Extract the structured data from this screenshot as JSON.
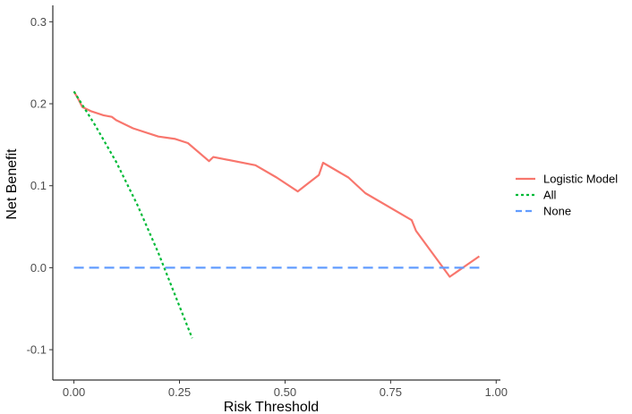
{
  "chart_data": {
    "type": "line",
    "xlabel": "Risk Threshold",
    "ylabel": "Net Benefit",
    "xlim": [
      -0.05,
      1.01
    ],
    "ylim": [
      -0.137,
      0.32
    ],
    "x_ticks": [
      0.0,
      0.25,
      0.5,
      0.75,
      1.0
    ],
    "x_tick_labels": [
      "0.00",
      "0.25",
      "0.50",
      "0.75",
      "1.00"
    ],
    "y_ticks": [
      -0.1,
      0.0,
      0.1,
      0.2,
      0.3
    ],
    "y_tick_labels": [
      "-0.1",
      "0.0",
      "0.1",
      "0.2",
      "0.3"
    ],
    "grid": false,
    "legend_position": "right",
    "series": [
      {
        "name": "Logistic Model",
        "color": "#F8766D",
        "dash": "solid",
        "points": [
          [
            0.0,
            0.215
          ],
          [
            0.01,
            0.206
          ],
          [
            0.02,
            0.196
          ],
          [
            0.04,
            0.191
          ],
          [
            0.07,
            0.186
          ],
          [
            0.09,
            0.184
          ],
          [
            0.1,
            0.18
          ],
          [
            0.14,
            0.17
          ],
          [
            0.2,
            0.16
          ],
          [
            0.24,
            0.157
          ],
          [
            0.27,
            0.152
          ],
          [
            0.32,
            0.13
          ],
          [
            0.33,
            0.135
          ],
          [
            0.43,
            0.125
          ],
          [
            0.48,
            0.11
          ],
          [
            0.53,
            0.093
          ],
          [
            0.55,
            0.101
          ],
          [
            0.58,
            0.113
          ],
          [
            0.59,
            0.128
          ],
          [
            0.65,
            0.11
          ],
          [
            0.69,
            0.091
          ],
          [
            0.8,
            0.058
          ],
          [
            0.81,
            0.045
          ],
          [
            0.89,
            -0.011
          ],
          [
            0.96,
            0.014
          ]
        ]
      },
      {
        "name": "All",
        "color": "#00BA38",
        "dash": "dotted",
        "points": [
          [
            0.0,
            0.215
          ],
          [
            0.05,
            0.174
          ],
          [
            0.1,
            0.129
          ],
          [
            0.15,
            0.077
          ],
          [
            0.2,
            0.018
          ],
          [
            0.25,
            -0.047
          ],
          [
            0.28,
            -0.086
          ]
        ]
      },
      {
        "name": "None",
        "color": "#619CFF",
        "dash": "dashed",
        "points": [
          [
            0.0,
            0.0
          ],
          [
            0.96,
            0.0
          ]
        ]
      }
    ]
  }
}
